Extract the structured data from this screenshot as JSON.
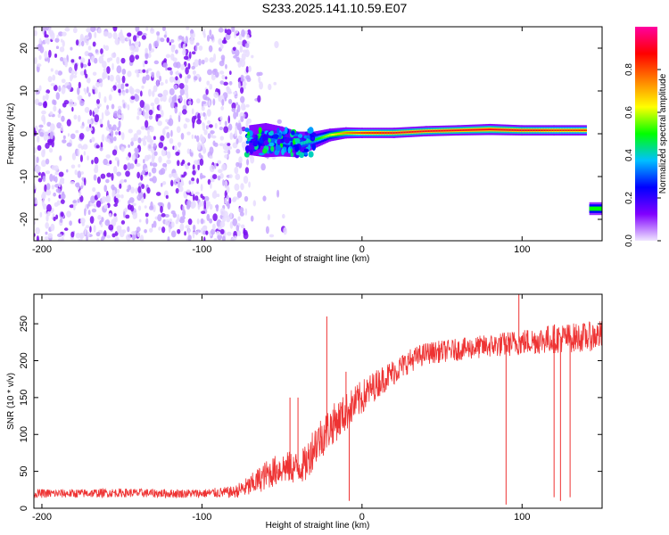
{
  "title": "S233.2025.141.10.59.E07",
  "chart_data": [
    {
      "type": "heatmap",
      "xlabel": "Height of straight line (km)",
      "ylabel": "Frequency (Hz)",
      "xlim": [
        -205,
        150
      ],
      "ylim": [
        -25,
        25
      ],
      "xticks": [
        -200,
        -100,
        0,
        100
      ],
      "yticks": [
        -20,
        -10,
        0,
        10,
        20
      ],
      "xtick_labels": [
        "-200",
        "-100",
        "0",
        "100"
      ],
      "ytick_labels": [
        "-20",
        "-10",
        "0",
        "10",
        "20"
      ],
      "colorbar": {
        "label": "Normalized spectral amplitude",
        "range": [
          0,
          1
        ],
        "ticks": [
          0.0,
          0.2,
          0.4,
          0.6,
          0.8
        ],
        "tick_labels": [
          "0.0",
          "0.2",
          "0.4",
          "0.6",
          "0.8"
        ],
        "colors": [
          "#f0e6ff",
          "#8000ff",
          "#0000ff",
          "#00c0ff",
          "#00ff00",
          "#ffff00",
          "#ff8000",
          "#ff0000",
          "#ff00a0"
        ]
      },
      "noise_region": {
        "x": [
          -205,
          -70
        ],
        "y": [
          -25,
          25
        ],
        "level": 0.1
      },
      "signal_track": [
        {
          "x": -70,
          "y": -1.5,
          "amp": 0.25,
          "width": 3.5
        },
        {
          "x": -60,
          "y": -1.5,
          "amp": 0.3,
          "width": 4
        },
        {
          "x": -50,
          "y": -1.8,
          "amp": 0.35,
          "width": 3.5
        },
        {
          "x": -40,
          "y": -2.5,
          "amp": 0.38,
          "width": 3
        },
        {
          "x": -30,
          "y": -1.5,
          "amp": 0.45,
          "width": 2
        },
        {
          "x": -20,
          "y": -0.3,
          "amp": 0.6,
          "width": 1.5
        },
        {
          "x": -10,
          "y": 0.2,
          "amp": 0.75,
          "width": 1.3
        },
        {
          "x": 0,
          "y": 0.2,
          "amp": 0.85,
          "width": 1.2
        },
        {
          "x": 20,
          "y": 0.2,
          "amp": 0.9,
          "width": 1.2
        },
        {
          "x": 40,
          "y": 0.6,
          "amp": 0.9,
          "width": 1.2
        },
        {
          "x": 60,
          "y": 0.8,
          "amp": 0.9,
          "width": 1.2
        },
        {
          "x": 80,
          "y": 1.0,
          "amp": 0.9,
          "width": 1.3
        },
        {
          "x": 100,
          "y": 0.8,
          "amp": 0.9,
          "width": 1.2
        },
        {
          "x": 120,
          "y": 0.8,
          "amp": 0.85,
          "width": 1.2
        },
        {
          "x": 140,
          "y": 0.8,
          "amp": 0.85,
          "width": 1.2
        }
      ],
      "secondary_blob": {
        "x": [
          142,
          150
        ],
        "y": -17.5,
        "amp": 0.5
      }
    },
    {
      "type": "line",
      "xlabel": "Height of straight line (km)",
      "ylabel": "SNR (10 * v/v)",
      "xlim": [
        -205,
        150
      ],
      "ylim": [
        0,
        290
      ],
      "xticks": [
        -200,
        -100,
        0,
        100
      ],
      "yticks": [
        0,
        50,
        100,
        150,
        200,
        250
      ],
      "xtick_labels": [
        "-200",
        "-100",
        "0",
        "100"
      ],
      "ytick_labels": [
        "0",
        "50",
        "100",
        "150",
        "200",
        "250"
      ],
      "color": "#ee3333",
      "series": [
        {
          "x": [
            -205,
            -180,
            -150,
            -120,
            -100,
            -80,
            -70,
            -60,
            -50,
            -40,
            -35,
            -30,
            -20,
            -10,
            0,
            10,
            20,
            30,
            40,
            60,
            80,
            100,
            120,
            140,
            150
          ],
          "values": [
            20,
            20,
            21,
            20,
            20,
            22,
            30,
            45,
            55,
            55,
            60,
            85,
            110,
            130,
            150,
            170,
            185,
            200,
            210,
            215,
            220,
            225,
            230,
            232,
            235
          ],
          "noise": [
            6,
            6,
            6,
            6,
            6,
            8,
            15,
            20,
            22,
            22,
            25,
            30,
            28,
            26,
            24,
            20,
            18,
            16,
            15,
            15,
            16,
            18,
            20,
            20,
            20
          ]
        }
      ],
      "spikes": [
        {
          "x": -45,
          "value": 150
        },
        {
          "x": -40,
          "value": 150
        },
        {
          "x": -22,
          "value": 260
        },
        {
          "x": -10,
          "value": 185
        },
        {
          "x": -8,
          "value": 10
        },
        {
          "x": 90,
          "value": 5
        },
        {
          "x": 98,
          "value": 290
        },
        {
          "x": 120,
          "value": 15
        },
        {
          "x": 124,
          "value": 10
        },
        {
          "x": 130,
          "value": 15
        }
      ]
    }
  ]
}
